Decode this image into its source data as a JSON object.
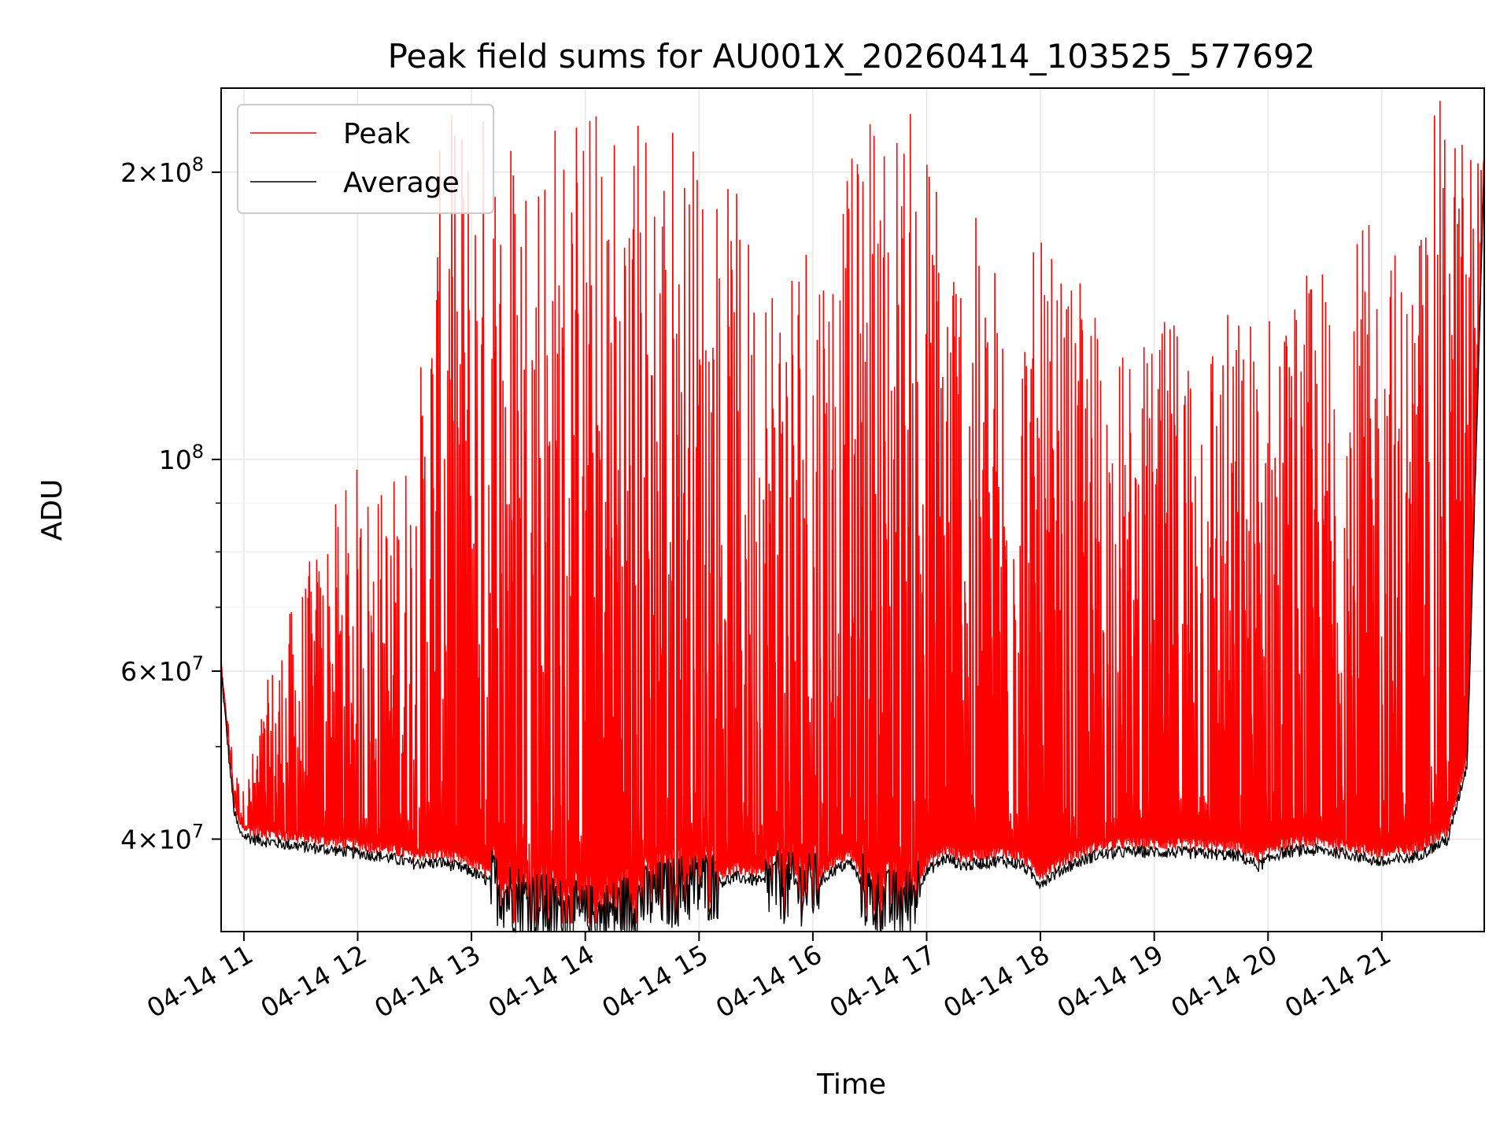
{
  "chart_data": {
    "type": "line",
    "title": "Peak field sums for AU001X_20260414_103525_577692",
    "xlabel": "Time",
    "ylabel": "ADU",
    "y_scale": "log",
    "ylim": [
      32000000,
      245000000
    ],
    "xlim_hours": [
      10.8,
      21.9
    ],
    "x_ticks": [
      "04-14 11",
      "04-14 12",
      "04-14 13",
      "04-14 14",
      "04-14 15",
      "04-14 16",
      "04-14 17",
      "04-14 18",
      "04-14 19",
      "04-14 20",
      "04-14 21"
    ],
    "y_ticks": [
      {
        "value": 40000000,
        "mantissa": "4",
        "exp": "7"
      },
      {
        "value": 60000000,
        "mantissa": "6",
        "exp": "7"
      },
      {
        "value": 100000000,
        "mantissa": "",
        "exp": "8"
      },
      {
        "value": 200000000,
        "mantissa": "2",
        "exp": "8"
      }
    ],
    "grid": true,
    "legend_position": "top-left",
    "series": [
      {
        "name": "Peak",
        "color": "#ff0000",
        "envelope_x": [
          "10:48",
          "10:55",
          "11:00",
          "11:15",
          "11:30",
          "11:45",
          "12:00",
          "12:15",
          "12:30",
          "12:45",
          "13:00",
          "13:15",
          "13:30",
          "13:45",
          "14:00",
          "14:15",
          "14:30",
          "14:45",
          "15:00",
          "15:15",
          "15:30",
          "15:45",
          "16:00",
          "16:15",
          "16:30",
          "16:45",
          "17:00",
          "17:15",
          "17:30",
          "17:45",
          "18:00",
          "18:15",
          "18:30",
          "18:45",
          "19:00",
          "19:15",
          "19:30",
          "19:45",
          "20:00",
          "20:15",
          "20:30",
          "20:45",
          "21:00",
          "21:15",
          "21:30",
          "21:45",
          "21:54"
        ],
        "envelope_max": [
          60000000,
          48000000,
          45000000,
          62000000,
          75000000,
          88000000,
          100000000,
          95000000,
          110000000,
          230000000,
          245000000,
          245000000,
          245000000,
          245000000,
          245000000,
          245000000,
          245000000,
          245000000,
          220000000,
          200000000,
          175000000,
          180000000,
          200000000,
          190000000,
          245000000,
          245000000,
          230000000,
          195000000,
          175000000,
          160000000,
          170000000,
          155000000,
          150000000,
          130000000,
          135000000,
          150000000,
          150000000,
          145000000,
          150000000,
          155000000,
          165000000,
          175000000,
          180000000,
          165000000,
          245000000,
          230000000,
          205000000
        ]
      },
      {
        "name": "Average",
        "color": "#000000",
        "x": [
          "10:48",
          "10:52",
          "10:55",
          "10:58",
          "11:05",
          "11:15",
          "11:30",
          "11:45",
          "12:00",
          "12:15",
          "12:30",
          "12:45",
          "13:00",
          "13:10",
          "13:20",
          "13:30",
          "13:40",
          "13:50",
          "14:00",
          "14:10",
          "14:20",
          "14:30",
          "14:40",
          "14:50",
          "15:00",
          "15:10",
          "15:20",
          "15:30",
          "15:40",
          "15:50",
          "16:00",
          "16:10",
          "16:20",
          "16:30",
          "16:40",
          "16:50",
          "17:00",
          "17:10",
          "17:20",
          "17:30",
          "17:40",
          "17:50",
          "18:00",
          "18:15",
          "18:30",
          "18:45",
          "19:00",
          "19:15",
          "19:30",
          "19:45",
          "19:55",
          "20:05",
          "20:15",
          "20:30",
          "20:45",
          "21:00",
          "21:15",
          "21:25",
          "21:35",
          "21:45",
          "21:54"
        ],
        "y": [
          60000000,
          49000000,
          42500000,
          40500000,
          40000000,
          39700000,
          39300000,
          39000000,
          38700000,
          38300000,
          37700000,
          37800000,
          37000000,
          36000000,
          35000000,
          34500000,
          33800000,
          33500000,
          33000000,
          33200000,
          33800000,
          34500000,
          35000000,
          35500000,
          35800000,
          36000000,
          36500000,
          36200000,
          35800000,
          35600000,
          35500000,
          37000000,
          37800000,
          34500000,
          34200000,
          34300000,
          37000000,
          38200000,
          37500000,
          37800000,
          38000000,
          37600000,
          36000000,
          37500000,
          38500000,
          38800000,
          38800000,
          38700000,
          38600000,
          38400000,
          37500000,
          38600000,
          38900000,
          38900000,
          38500000,
          37800000,
          38200000,
          39000000,
          40000000,
          48000000,
          205000000
        ]
      }
    ]
  }
}
